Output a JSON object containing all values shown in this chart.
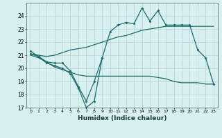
{
  "xlabel": "Humidex (Indice chaleur)",
  "x_values": [
    0,
    1,
    2,
    3,
    4,
    5,
    6,
    7,
    8,
    9,
    10,
    11,
    12,
    13,
    14,
    15,
    16,
    17,
    18,
    19,
    20,
    21,
    22,
    23
  ],
  "line1_y": [
    21.3,
    20.9,
    20.5,
    20.4,
    20.4,
    19.8,
    18.6,
    17.5,
    19.0,
    20.8,
    22.8,
    23.3,
    23.5,
    23.4,
    24.6,
    23.6,
    24.4,
    23.3,
    23.3,
    23.3,
    23.3,
    21.4,
    20.8,
    18.8
  ],
  "line2_x": [
    0,
    1,
    2,
    3,
    4,
    5,
    6,
    7,
    8,
    9
  ],
  "line2_y": [
    21.1,
    20.9,
    20.4,
    20.2,
    20.0,
    19.6,
    18.5,
    17.0,
    17.5,
    20.8
  ],
  "line3_y": [
    21.1,
    21.0,
    20.9,
    21.0,
    21.2,
    21.4,
    21.5,
    21.6,
    21.8,
    22.0,
    22.2,
    22.4,
    22.5,
    22.7,
    22.9,
    23.0,
    23.1,
    23.2,
    23.2,
    23.2,
    23.2,
    23.2,
    23.2,
    23.2
  ],
  "line4_y": [
    21.0,
    20.8,
    20.5,
    20.1,
    19.9,
    19.7,
    19.5,
    19.4,
    19.4,
    19.4,
    19.4,
    19.4,
    19.4,
    19.4,
    19.4,
    19.4,
    19.3,
    19.2,
    19.0,
    18.9,
    18.9,
    18.9,
    18.8,
    18.8
  ],
  "bg_color": "#d8f0f0",
  "grid_color": "#b8dada",
  "line_color": "#1a6b6b",
  "ylim": [
    17,
    25
  ],
  "xlim": [
    -0.5,
    23.5
  ],
  "yticks": [
    17,
    18,
    19,
    20,
    21,
    22,
    23,
    24
  ],
  "xticks": [
    0,
    1,
    2,
    3,
    4,
    5,
    6,
    7,
    8,
    9,
    10,
    11,
    12,
    13,
    14,
    15,
    16,
    17,
    18,
    19,
    20,
    21,
    22,
    23
  ]
}
